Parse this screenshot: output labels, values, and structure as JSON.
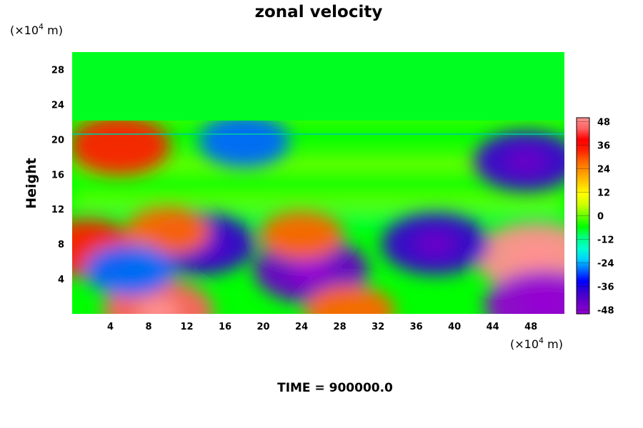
{
  "chart_data": {
    "type": "heatmap",
    "title": "zonal velocity",
    "xlabel": "",
    "ylabel": "Height",
    "x_unit_prefix": "(×10",
    "x_unit_exp": "4",
    "x_unit_suffix": " m)",
    "y_unit_prefix": "(×10",
    "y_unit_exp": "4",
    "y_unit_suffix": " m)",
    "xlim": [
      0,
      51.5
    ],
    "ylim": [
      0,
      30
    ],
    "x_ticks": [
      "4",
      "8",
      "12",
      "16",
      "20",
      "24",
      "28",
      "32",
      "36",
      "40",
      "44",
      "48"
    ],
    "y_ticks": [
      "4",
      "8",
      "12",
      "16",
      "20",
      "24",
      "28"
    ],
    "colorbar": {
      "range": [
        -50,
        50
      ],
      "ticks": [
        "48",
        "36",
        "24",
        "12",
        "0",
        "-12",
        "-24",
        "-36",
        "-48"
      ],
      "colors": [
        "#9400d3",
        "#6a00c8",
        "#3a00d0",
        "#0000ff",
        "#0066ff",
        "#00d0ff",
        "#00ffd0",
        "#00ff80",
        "#00ff00",
        "#66ff00",
        "#ccff00",
        "#ffff00",
        "#ffcc00",
        "#ff9900",
        "#ff6600",
        "#ff2000",
        "#ff0000",
        "#ff6060",
        "#ff9090"
      ]
    },
    "features": [
      {
        "x": 48.5,
        "y": 6.5,
        "value": 48
      },
      {
        "x": 49.5,
        "y": 1.0,
        "value": -48
      },
      {
        "x": 1.5,
        "y": 7.5,
        "value": 36
      },
      {
        "x": 9.0,
        "y": 0.3,
        "value": 42
      },
      {
        "x": 13.5,
        "y": 8.0,
        "value": -40
      },
      {
        "x": 38.0,
        "y": 8.0,
        "value": -40
      },
      {
        "x": 25.0,
        "y": 5.0,
        "value": -44
      },
      {
        "x": 47.5,
        "y": 17.5,
        "value": -38
      },
      {
        "x": 5.0,
        "y": 19.3,
        "value": 36
      },
      {
        "x": 18.0,
        "y": 19.8,
        "value": -30
      },
      {
        "x": 10.0,
        "y": 9.5,
        "value": 26
      },
      {
        "x": 24.0,
        "y": 9.0,
        "value": 26
      },
      {
        "x": 29.0,
        "y": 0.3,
        "value": 30
      },
      {
        "x": 6.0,
        "y": 5.0,
        "value": -30
      }
    ]
  },
  "footer": {
    "time_label": "TIME = 900000.0"
  }
}
